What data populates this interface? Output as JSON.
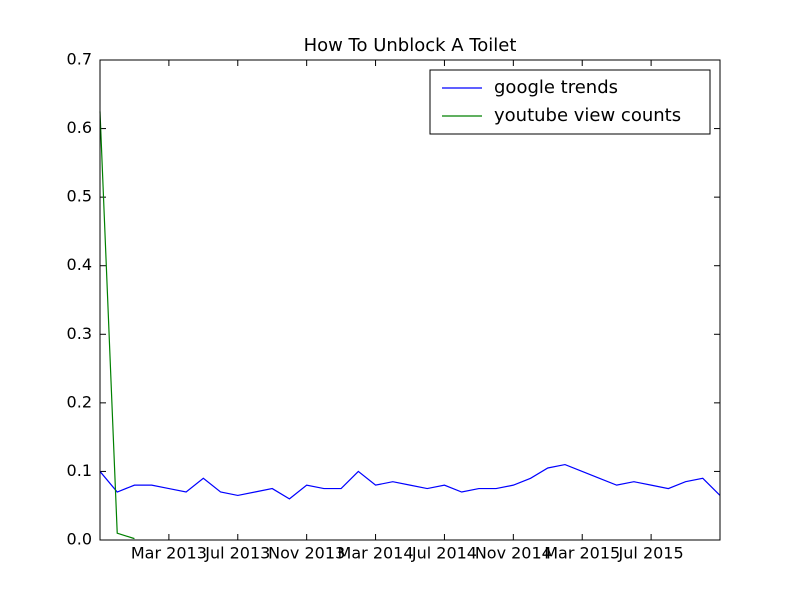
{
  "chart_data": {
    "type": "line",
    "title": "How To Unblock A Toilet",
    "xlim": [
      "2012-11",
      "2015-11"
    ],
    "xticks": [
      {
        "value": "2013-03",
        "label": "Mar 2013"
      },
      {
        "value": "2013-07",
        "label": "Jul 2013"
      },
      {
        "value": "2013-11",
        "label": "Nov 2013"
      },
      {
        "value": "2014-03",
        "label": "Mar 2014"
      },
      {
        "value": "2014-07",
        "label": "Jul 2014"
      },
      {
        "value": "2014-11",
        "label": "Nov 2014"
      },
      {
        "value": "2015-03",
        "label": "Mar 2015"
      },
      {
        "value": "2015-07",
        "label": "Jul 2015"
      }
    ],
    "ylim": [
      0,
      0.7
    ],
    "yticks": [
      {
        "value": 0,
        "label": "0.0"
      },
      0.1,
      0.2,
      0.3,
      0.4,
      0.5,
      0.6,
      0.7
    ],
    "grid": false,
    "legend": "upper right",
    "series": [
      {
        "name": "google trends",
        "color": "#0000ff",
        "x": [
          "2012-11",
          "2012-12",
          "2013-01",
          "2013-02",
          "2013-03",
          "2013-04",
          "2013-05",
          "2013-06",
          "2013-07",
          "2013-08",
          "2013-09",
          "2013-10",
          "2013-11",
          "2013-12",
          "2014-01",
          "2014-02",
          "2014-03",
          "2014-04",
          "2014-05",
          "2014-06",
          "2014-07",
          "2014-08",
          "2014-09",
          "2014-10",
          "2014-11",
          "2014-12",
          "2015-01",
          "2015-02",
          "2015-03",
          "2015-04",
          "2015-05",
          "2015-06",
          "2015-07",
          "2015-08",
          "2015-09",
          "2015-10",
          "2015-11"
        ],
        "values": [
          0.1,
          0.07,
          0.08,
          0.08,
          0.075,
          0.07,
          0.09,
          0.07,
          0.065,
          0.07,
          0.075,
          0.06,
          0.08,
          0.075,
          0.075,
          0.1,
          0.08,
          0.085,
          0.08,
          0.075,
          0.08,
          0.07,
          0.075,
          0.075,
          0.08,
          0.09,
          0.105,
          0.11,
          0.1,
          0.09,
          0.08,
          0.085,
          0.08,
          0.075,
          0.085,
          0.09,
          0.065
        ]
      },
      {
        "name": "youtube view counts",
        "color": "#008000",
        "x": [
          "2012-11",
          "2012-12",
          "2013-01"
        ],
        "values": [
          0.625,
          0.01,
          0.002
        ]
      }
    ]
  }
}
